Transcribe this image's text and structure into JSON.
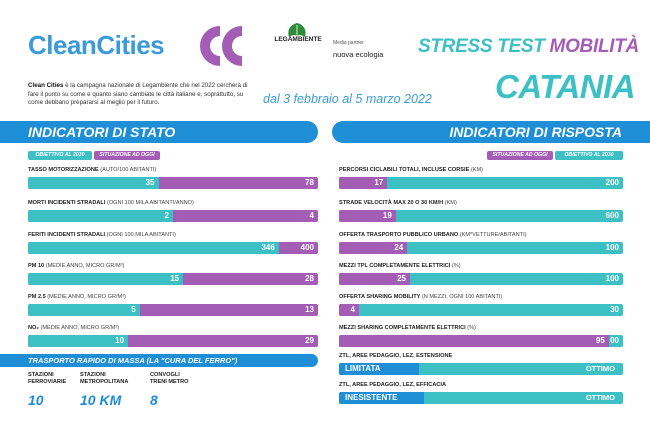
{
  "header": {
    "brand_clean": "Clean",
    "brand_cities": "Cities",
    "partner": "LEGAMBIENTE",
    "media_partner_label": "Media partner",
    "media_partner_name": "nuova ecologia",
    "stress_title": "STRESS TEST",
    "stress_title_accent": "MOBILITÀ",
    "city": "CATANIA",
    "intro_bold": "Clean Cities",
    "intro_text": " è la campagna nazionale di Legambiente che nel 2022 cercherà di fare il punto su come e quanto siano cambiate le città italiane e, soprattutto, su come debbano prepararsi al meglio per il futuro.",
    "dates": "dal 3 febbraio al 5 marzo 2022"
  },
  "colors": {
    "blue": "#1e8fd6",
    "teal": "#3cc0c4",
    "purple": "#a45db5"
  },
  "stato": {
    "title": "INDICATORI DI STATO",
    "legend_goal": "OBIETTIVO AL 2030",
    "legend_current": "SITUAZIONE AD OGGI",
    "items": [
      {
        "label": "TASSO MOTORIZZAZIONE",
        "unit": "(AUTO/100 ABITANTI)",
        "goal": "35",
        "current": "78"
      },
      {
        "label": "MORTI INCIDENTI STRADALI",
        "unit": "(OGNI 100 MILA ABITANTI/ANNO)",
        "goal": "2",
        "current": "4"
      },
      {
        "label": "FERITI INCIDENTI STRADALI",
        "unit": "(OGNI 100 MILA ABITANTI)",
        "goal": "346",
        "current": "400"
      },
      {
        "label": "PM 10",
        "unit": "(MEDIE ANNO, MICRO GR/M³)",
        "goal": "15",
        "current": "28"
      },
      {
        "label": "PM 2.5",
        "unit": "(MEDIE ANNO, MICRO GR/M³)",
        "goal": "5",
        "current": "13"
      },
      {
        "label": "NO₂",
        "unit": "(MEDIE ANNO, MICRO GR/M³)",
        "goal": "10",
        "current": "29"
      }
    ]
  },
  "trasporto": {
    "title": "TRASPORTO RAPIDO DI MASSA (LA \"CURA DEL FERRO\")",
    "items": [
      {
        "line1": "STAZIONI",
        "line2": "FERROVIARIE",
        "value": "10"
      },
      {
        "line1": "STAZIONI",
        "line2": "METROPOLITANA",
        "value": "10 KM"
      },
      {
        "line1": "CONVOGLI",
        "line2": "TRENI METRO",
        "value": "8"
      }
    ]
  },
  "risposta": {
    "title": "INDICATORI DI RISPOSTA",
    "legend_current": "SITUAZIONE AD OGGI",
    "legend_goal": "OBIETTIVO AL 2030",
    "items": [
      {
        "label": "PERCORSI CICLABILI TOTALI, INCLUSE CORSIE",
        "unit": "(KM)",
        "current": "17",
        "goal": "200"
      },
      {
        "label": "STRADE VELOCITÀ MAX 20 O 30 KM/H",
        "unit": "(KM)",
        "current": "19",
        "goal": "600"
      },
      {
        "label": "OFFERTA TRASPORTO PUBBLICO URBANO",
        "unit": "(KM*VETTURE/ABITANTI)",
        "current": "24",
        "goal": "100"
      },
      {
        "label": "MEZZI TPL COMPLETAMENTE ELETTRICI",
        "unit": "(%)",
        "current": "25",
        "goal": "100"
      },
      {
        "label": "OFFERTA SHARING MOBILITY",
        "unit": "(N MEZZI, OGNI 100 ABITANTI)",
        "current": "4",
        "goal": "30"
      },
      {
        "label": "MEZZI SHARING COMPLETAMENTE ELETTRICI",
        "unit": "(%)",
        "current": "95",
        "goal": "100"
      }
    ],
    "ztl": [
      {
        "label": "ZTL, AREE PEDAGGIO, LEZ, ESTENSIONE",
        "current": "LIMITATA",
        "goal": "OTTIMO"
      },
      {
        "label": "ZTL, AREE PEDAGGIO, LEZ, EFFICACIA",
        "current": "INESISTENTE",
        "goal": "OTTIMO"
      }
    ]
  }
}
